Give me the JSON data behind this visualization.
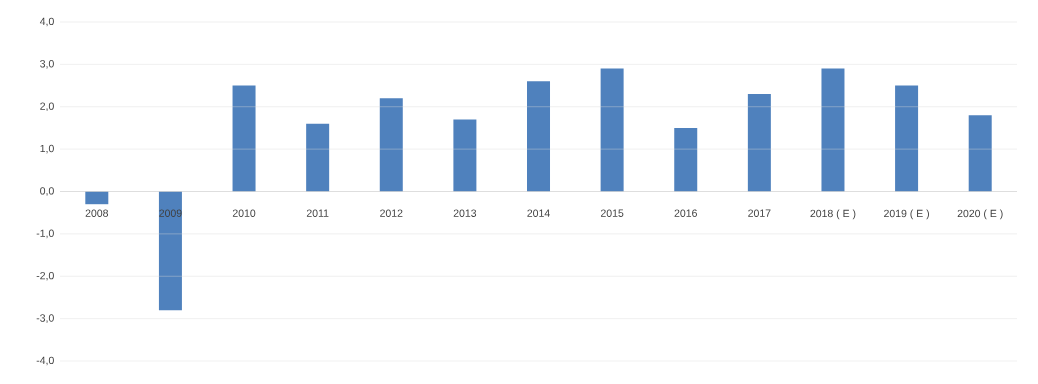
{
  "chart_data": {
    "type": "bar",
    "categories": [
      "2008",
      "2009",
      "2010",
      "2011",
      "2012",
      "2013",
      "2014",
      "2015",
      "2016",
      "2017",
      "2018 ( E )",
      "2019 ( E )",
      "2020 ( E )"
    ],
    "values": [
      -0.3,
      -2.8,
      2.5,
      1.6,
      2.2,
      1.7,
      2.6,
      2.9,
      1.5,
      2.3,
      2.9,
      2.5,
      1.8
    ],
    "color": "#4f81bd",
    "ylim": [
      -4,
      4
    ],
    "yticks": [
      {
        "value": -4,
        "label": "-4,0"
      },
      {
        "value": -3,
        "label": "-3,0"
      },
      {
        "value": -2,
        "label": "-2,0"
      },
      {
        "value": -1,
        "label": "-1,0"
      },
      {
        "value": 0,
        "label": "0,0"
      },
      {
        "value": 1,
        "label": "1,0"
      },
      {
        "value": 2,
        "label": "2,0"
      },
      {
        "value": 3,
        "label": "3,0"
      },
      {
        "value": 4,
        "label": "4,0"
      }
    ],
    "grid": "y"
  }
}
